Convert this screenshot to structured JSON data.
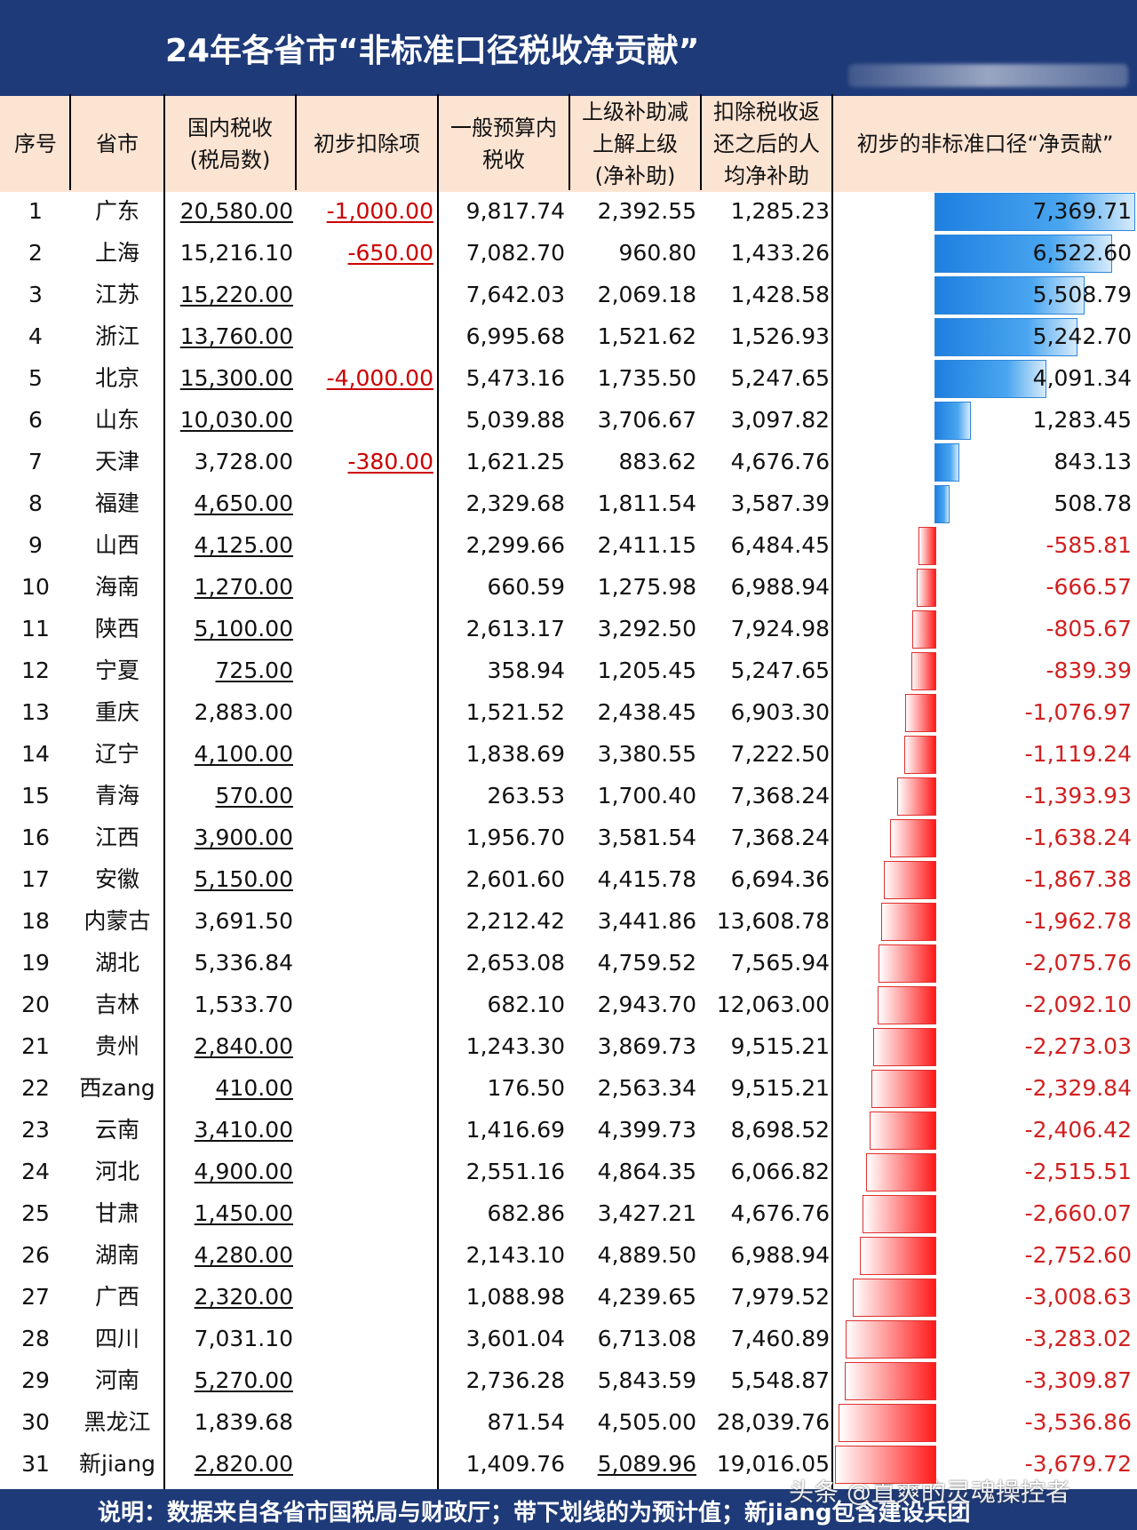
{
  "title": "24年各省市“非标准口径税收净贡献”",
  "headers": {
    "idx": "序号",
    "province": "省市",
    "domestic_tax_l1": "国内税收",
    "domestic_tax_l2": "(税局数)",
    "deduction": "初步扣除项",
    "general_budget_l1": "一般预算内",
    "general_budget_l2": "税收",
    "subsidy_l1": "上级补助减",
    "subsidy_l2": "上解上级",
    "subsidy_l3": "(净补助)",
    "per_capita_l1": "扣除税收返",
    "per_capita_l2": "还之后的人",
    "per_capita_l3": "均净补助",
    "contribution": "初步的非标准口径“净贡献”"
  },
  "colors": {
    "header_bg": "#1e3a78",
    "column_header_bg": "#fce4d3",
    "positive_bar": "#1e7fe0",
    "negative_bar": "#ff1a1a",
    "negative_text": "#d22020"
  },
  "chart_data": {
    "type": "table",
    "title": "24年各省市“非标准口径税收净贡献”",
    "columns": [
      "序号",
      "省市",
      "国内税收(税局数)",
      "初步扣除项",
      "一般预算内税收",
      "上级补助减上解上级(净补助)",
      "扣除税收返还之后的人均净补助",
      "初步的非标准口径“净贡献”"
    ],
    "rows": [
      {
        "idx": "1",
        "province": "广东",
        "tax": "20,580.00",
        "tax_underlined": true,
        "deduction": "-1,000.00",
        "general": "9,817.74",
        "subsidy": "2,392.55",
        "subsidy_underlined": false,
        "per_capita": "1,285.23",
        "contribution_label": "7,369.71",
        "contribution": 7369.71
      },
      {
        "idx": "2",
        "province": "上海",
        "tax": "15,216.10",
        "tax_underlined": false,
        "deduction": "-650.00",
        "general": "7,082.70",
        "subsidy": "960.80",
        "subsidy_underlined": false,
        "per_capita": "1,433.26",
        "contribution_label": "6,522.60",
        "contribution": 6522.6
      },
      {
        "idx": "3",
        "province": "江苏",
        "tax": "15,220.00",
        "tax_underlined": true,
        "deduction": "",
        "general": "7,642.03",
        "subsidy": "2,069.18",
        "subsidy_underlined": false,
        "per_capita": "1,428.58",
        "contribution_label": "5,508.79",
        "contribution": 5508.79
      },
      {
        "idx": "4",
        "province": "浙江",
        "tax": "13,760.00",
        "tax_underlined": true,
        "deduction": "",
        "general": "6,995.68",
        "subsidy": "1,521.62",
        "subsidy_underlined": false,
        "per_capita": "1,526.93",
        "contribution_label": "5,242.70",
        "contribution": 5242.7
      },
      {
        "idx": "5",
        "province": "北京",
        "tax": "15,300.00",
        "tax_underlined": true,
        "deduction": "-4,000.00",
        "general": "5,473.16",
        "subsidy": "1,735.50",
        "subsidy_underlined": false,
        "per_capita": "5,247.65",
        "contribution_label": "4,091.34",
        "contribution": 4091.34
      },
      {
        "idx": "6",
        "province": "山东",
        "tax": "10,030.00",
        "tax_underlined": true,
        "deduction": "",
        "general": "5,039.88",
        "subsidy": "3,706.67",
        "subsidy_underlined": false,
        "per_capita": "3,097.82",
        "contribution_label": "1,283.45",
        "contribution": 1283.45
      },
      {
        "idx": "7",
        "province": "天津",
        "tax": "3,728.00",
        "tax_underlined": false,
        "deduction": "-380.00",
        "general": "1,621.25",
        "subsidy": "883.62",
        "subsidy_underlined": false,
        "per_capita": "4,676.76",
        "contribution_label": "843.13",
        "contribution": 843.13
      },
      {
        "idx": "8",
        "province": "福建",
        "tax": "4,650.00",
        "tax_underlined": true,
        "deduction": "",
        "general": "2,329.68",
        "subsidy": "1,811.54",
        "subsidy_underlined": false,
        "per_capita": "3,587.39",
        "contribution_label": "508.78",
        "contribution": 508.78
      },
      {
        "idx": "9",
        "province": "山西",
        "tax": "4,125.00",
        "tax_underlined": true,
        "deduction": "",
        "general": "2,299.66",
        "subsidy": "2,411.15",
        "subsidy_underlined": false,
        "per_capita": "6,484.45",
        "contribution_label": "-585.81",
        "contribution": -585.81
      },
      {
        "idx": "10",
        "province": "海南",
        "tax": "1,270.00",
        "tax_underlined": true,
        "deduction": "",
        "general": "660.59",
        "subsidy": "1,275.98",
        "subsidy_underlined": false,
        "per_capita": "6,988.94",
        "contribution_label": "-666.57",
        "contribution": -666.57
      },
      {
        "idx": "11",
        "province": "陕西",
        "tax": "5,100.00",
        "tax_underlined": true,
        "deduction": "",
        "general": "2,613.17",
        "subsidy": "3,292.50",
        "subsidy_underlined": false,
        "per_capita": "7,924.98",
        "contribution_label": "-805.67",
        "contribution": -805.67
      },
      {
        "idx": "12",
        "province": "宁夏",
        "tax": "725.00",
        "tax_underlined": true,
        "deduction": "",
        "general": "358.94",
        "subsidy": "1,205.45",
        "subsidy_underlined": false,
        "per_capita": "5,247.65",
        "contribution_label": "-839.39",
        "contribution": -839.39
      },
      {
        "idx": "13",
        "province": "重庆",
        "tax": "2,883.00",
        "tax_underlined": false,
        "deduction": "",
        "general": "1,521.52",
        "subsidy": "2,438.45",
        "subsidy_underlined": false,
        "per_capita": "6,903.30",
        "contribution_label": "-1,076.97",
        "contribution": -1076.97
      },
      {
        "idx": "14",
        "province": "辽宁",
        "tax": "4,100.00",
        "tax_underlined": true,
        "deduction": "",
        "general": "1,838.69",
        "subsidy": "3,380.55",
        "subsidy_underlined": false,
        "per_capita": "7,222.50",
        "contribution_label": "-1,119.24",
        "contribution": -1119.24
      },
      {
        "idx": "15",
        "province": "青海",
        "tax": "570.00",
        "tax_underlined": true,
        "deduction": "",
        "general": "263.53",
        "subsidy": "1,700.40",
        "subsidy_underlined": false,
        "per_capita": "7,368.24",
        "contribution_label": "-1,393.93",
        "contribution": -1393.93
      },
      {
        "idx": "16",
        "province": "江西",
        "tax": "3,900.00",
        "tax_underlined": true,
        "deduction": "",
        "general": "1,956.70",
        "subsidy": "3,581.54",
        "subsidy_underlined": false,
        "per_capita": "7,368.24",
        "contribution_label": "-1,638.24",
        "contribution": -1638.24
      },
      {
        "idx": "17",
        "province": "安徽",
        "tax": "5,150.00",
        "tax_underlined": true,
        "deduction": "",
        "general": "2,601.60",
        "subsidy": "4,415.78",
        "subsidy_underlined": false,
        "per_capita": "6,694.36",
        "contribution_label": "-1,867.38",
        "contribution": -1867.38
      },
      {
        "idx": "18",
        "province": "内蒙古",
        "tax": "3,691.50",
        "tax_underlined": false,
        "deduction": "",
        "general": "2,212.42",
        "subsidy": "3,441.86",
        "subsidy_underlined": false,
        "per_capita": "13,608.78",
        "contribution_label": "-1,962.78",
        "contribution": -1962.78
      },
      {
        "idx": "19",
        "province": "湖北",
        "tax": "5,336.84",
        "tax_underlined": false,
        "deduction": "",
        "general": "2,653.08",
        "subsidy": "4,759.52",
        "subsidy_underlined": false,
        "per_capita": "7,565.94",
        "contribution_label": "-2,075.76",
        "contribution": -2075.76
      },
      {
        "idx": "20",
        "province": "吉林",
        "tax": "1,533.70",
        "tax_underlined": false,
        "deduction": "",
        "general": "682.10",
        "subsidy": "2,943.70",
        "subsidy_underlined": false,
        "per_capita": "12,063.00",
        "contribution_label": "-2,092.10",
        "contribution": -2092.1
      },
      {
        "idx": "21",
        "province": "贵州",
        "tax": "2,840.00",
        "tax_underlined": true,
        "deduction": "",
        "general": "1,243.30",
        "subsidy": "3,869.73",
        "subsidy_underlined": false,
        "per_capita": "9,515.21",
        "contribution_label": "-2,273.03",
        "contribution": -2273.03
      },
      {
        "idx": "22",
        "province": "西zang",
        "tax": "410.00",
        "tax_underlined": true,
        "deduction": "",
        "general": "176.50",
        "subsidy": "2,563.34",
        "subsidy_underlined": false,
        "per_capita": "9,515.21",
        "contribution_label": "-2,329.84",
        "contribution": -2329.84
      },
      {
        "idx": "23",
        "province": "云南",
        "tax": "3,410.00",
        "tax_underlined": true,
        "deduction": "",
        "general": "1,416.69",
        "subsidy": "4,399.73",
        "subsidy_underlined": false,
        "per_capita": "8,698.52",
        "contribution_label": "-2,406.42",
        "contribution": -2406.42
      },
      {
        "idx": "24",
        "province": "河北",
        "tax": "4,900.00",
        "tax_underlined": true,
        "deduction": "",
        "general": "2,551.16",
        "subsidy": "4,864.35",
        "subsidy_underlined": false,
        "per_capita": "6,066.82",
        "contribution_label": "-2,515.51",
        "contribution": -2515.51
      },
      {
        "idx": "25",
        "province": "甘肃",
        "tax": "1,450.00",
        "tax_underlined": true,
        "deduction": "",
        "general": "682.86",
        "subsidy": "3,427.21",
        "subsidy_underlined": false,
        "per_capita": "4,676.76",
        "contribution_label": "-2,660.07",
        "contribution": -2660.07
      },
      {
        "idx": "26",
        "province": "湖南",
        "tax": "4,280.00",
        "tax_underlined": true,
        "deduction": "",
        "general": "2,143.10",
        "subsidy": "4,889.50",
        "subsidy_underlined": false,
        "per_capita": "6,988.94",
        "contribution_label": "-2,752.60",
        "contribution": -2752.6
      },
      {
        "idx": "27",
        "province": "广西",
        "tax": "2,320.00",
        "tax_underlined": true,
        "deduction": "",
        "general": "1,088.98",
        "subsidy": "4,239.65",
        "subsidy_underlined": false,
        "per_capita": "7,979.52",
        "contribution_label": "-3,008.63",
        "contribution": -3008.63
      },
      {
        "idx": "28",
        "province": "四川",
        "tax": "7,031.10",
        "tax_underlined": false,
        "deduction": "",
        "general": "3,601.04",
        "subsidy": "6,713.08",
        "subsidy_underlined": false,
        "per_capita": "7,460.89",
        "contribution_label": "-3,283.02",
        "contribution": -3283.02
      },
      {
        "idx": "29",
        "province": "河南",
        "tax": "5,270.00",
        "tax_underlined": true,
        "deduction": "",
        "general": "2,736.28",
        "subsidy": "5,843.59",
        "subsidy_underlined": false,
        "per_capita": "5,548.87",
        "contribution_label": "-3,309.87",
        "contribution": -3309.87
      },
      {
        "idx": "30",
        "province": "黑龙江",
        "tax": "1,839.68",
        "tax_underlined": false,
        "deduction": "",
        "general": "871.54",
        "subsidy": "4,505.00",
        "subsidy_underlined": false,
        "per_capita": "28,039.76",
        "contribution_label": "-3,536.86",
        "contribution": -3536.86
      },
      {
        "idx": "31",
        "province": "新jiang",
        "tax": "2,820.00",
        "tax_underlined": true,
        "deduction": "",
        "general": "1,409.76",
        "subsidy": "5,089.96",
        "subsidy_underlined": true,
        "per_capita": "19,016.05",
        "contribution_label": "-3,679.72",
        "contribution": -3679.72
      }
    ]
  },
  "footer": "说明：数据来自各省市国税局与财政厅；带下划线的为预计值；新jiang包含建设兵团",
  "watermark": "头条 @直爽的灵魂操控者"
}
